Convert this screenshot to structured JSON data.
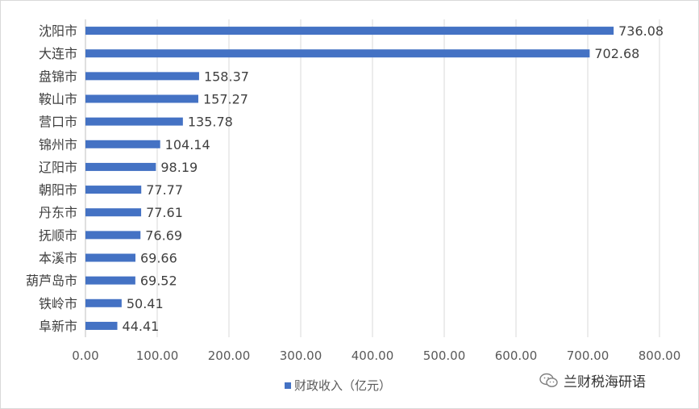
{
  "chart_data": {
    "type": "bar",
    "orientation": "horizontal",
    "categories": [
      "沈阳市",
      "大连市",
      "盘锦市",
      "鞍山市",
      "营口市",
      "锦州市",
      "辽阳市",
      "朝阳市",
      "丹东市",
      "抚顺市",
      "本溪市",
      "葫芦岛市",
      "铁岭市",
      "阜新市"
    ],
    "series": [
      {
        "name": "财政收入（亿元）",
        "color": "#4472c4",
        "values": [
          736.08,
          702.68,
          158.37,
          157.27,
          135.78,
          104.14,
          98.19,
          77.77,
          77.61,
          76.69,
          69.66,
          69.52,
          50.41,
          44.41
        ],
        "labels": [
          "736.08",
          "702.68",
          "158.37",
          "157.27",
          "135.78",
          "104.14",
          "98.19",
          "77.77",
          "77.61",
          "76.69",
          "69.66",
          "69.52",
          "50.41",
          "44.41"
        ]
      }
    ],
    "xlim": [
      0,
      800
    ],
    "x_ticks": [
      0,
      100,
      200,
      300,
      400,
      500,
      600,
      700,
      800
    ],
    "x_tick_labels": [
      "0.00",
      "100.00",
      "200.00",
      "300.00",
      "400.00",
      "500.00",
      "600.00",
      "700.00",
      "800.00"
    ],
    "grid": "vertical",
    "legend_position": "bottom"
  },
  "legend": {
    "label": "财政收入（亿元）"
  },
  "watermark": {
    "text": "兰财税海研语",
    "icon": "wechat-icon"
  }
}
